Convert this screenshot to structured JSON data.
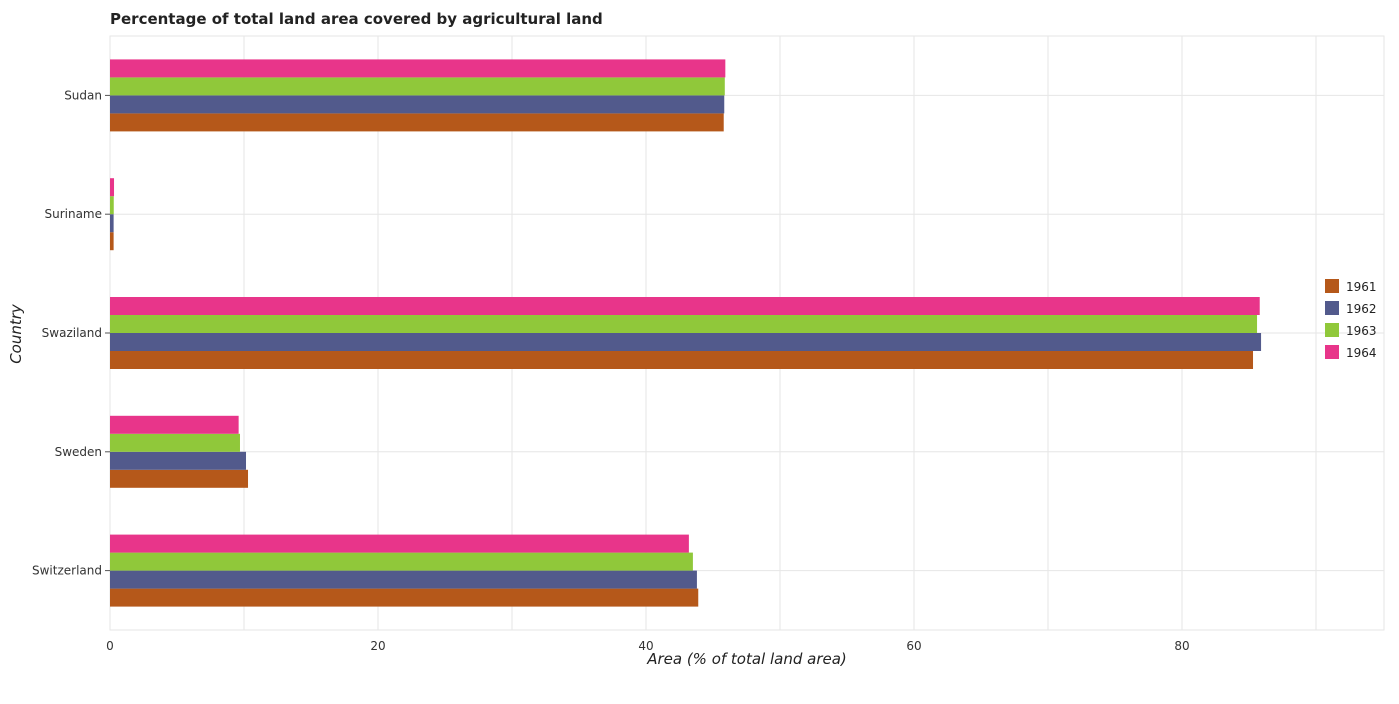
{
  "chart_data": {
    "type": "bar",
    "orientation": "horizontal",
    "title": "Percentage of total land area covered by agricultural land",
    "xlabel": "Area (% of total land area)",
    "ylabel": "Country",
    "xlim": [
      0,
      90
    ],
    "x_ticks": [
      0,
      20,
      40,
      60,
      80
    ],
    "x_tick_labels": [
      "0",
      "20",
      "40",
      "60",
      "80"
    ],
    "grid": true,
    "legend_position": "right",
    "categories": [
      "Sudan",
      "Suriname",
      "Swaziland",
      "Sweden",
      "Switzerland"
    ],
    "series": [
      {
        "name": "1961",
        "color": "#b5581a",
        "values": [
          45.8,
          0.27,
          85.3,
          10.3,
          43.9
        ]
      },
      {
        "name": "1962",
        "color": "#525a8c",
        "values": [
          45.84,
          0.27,
          85.9,
          10.15,
          43.8
        ]
      },
      {
        "name": "1963",
        "color": "#90c83a",
        "values": [
          45.88,
          0.28,
          85.6,
          9.7,
          43.5
        ]
      },
      {
        "name": "1964",
        "color": "#e8358a",
        "values": [
          45.92,
          0.3,
          85.8,
          9.6,
          43.2
        ]
      }
    ]
  }
}
